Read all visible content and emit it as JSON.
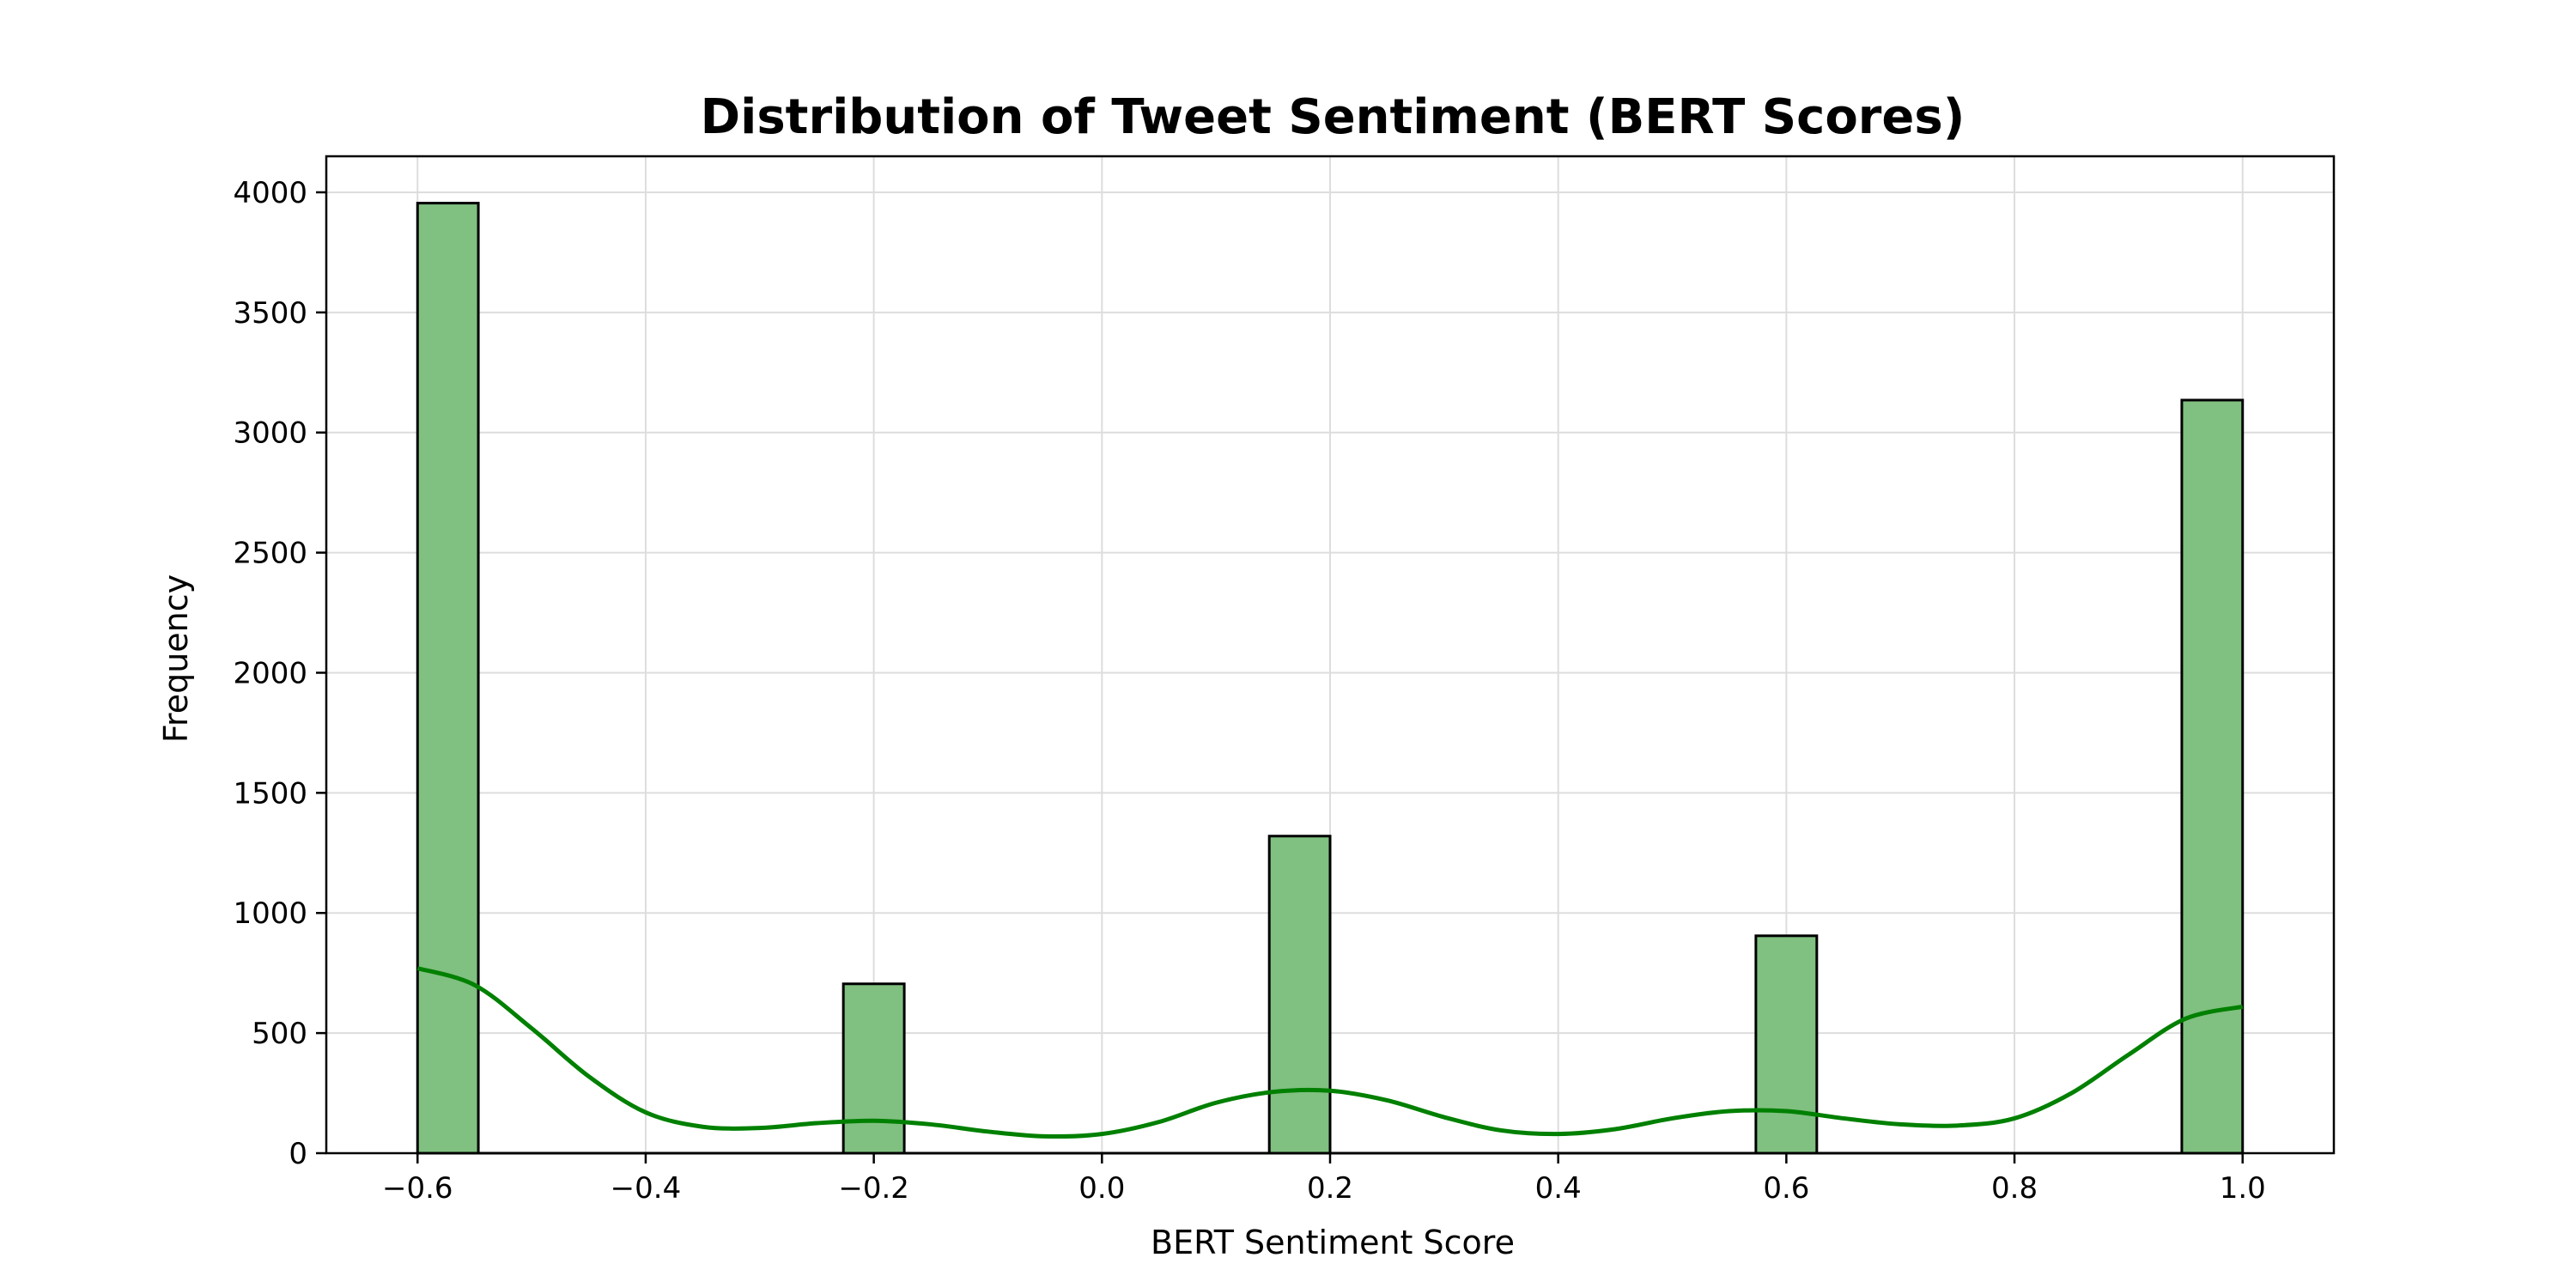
{
  "chart_data": {
    "type": "bar",
    "title": "Distribution of Tweet Sentiment (BERT Scores)",
    "xlabel": "BERT Sentiment Score",
    "ylabel": "Frequency",
    "xlim": [
      -0.68,
      1.08
    ],
    "ylim": [
      0,
      4150
    ],
    "x_ticks": [
      -0.6,
      -0.4,
      -0.2,
      0.0,
      0.2,
      0.4,
      0.6,
      0.8,
      1.0
    ],
    "x_tick_labels": [
      "−0.6",
      "−0.4",
      "−0.2",
      "0.0",
      "0.2",
      "0.4",
      "0.6",
      "0.8",
      "1.0"
    ],
    "y_ticks": [
      0,
      500,
      1000,
      1500,
      2000,
      2500,
      3000,
      3500,
      4000
    ],
    "y_tick_labels": [
      "0",
      "500",
      "1000",
      "1500",
      "2000",
      "2500",
      "3000",
      "3500",
      "4000"
    ],
    "grid": true,
    "bar_color": "#80c080",
    "edge_color": "#000000",
    "kde_color": "#008000",
    "bars": [
      {
        "x0": -0.6,
        "x1": -0.5467,
        "value": 3955
      },
      {
        "x0": -0.2267,
        "x1": -0.1733,
        "value": 705
      },
      {
        "x0": 0.1467,
        "x1": 0.2,
        "value": 1320
      },
      {
        "x0": 0.5733,
        "x1": 0.6267,
        "value": 905
      },
      {
        "x0": 0.9467,
        "x1": 1.0,
        "value": 3135
      }
    ],
    "kde": {
      "x": [
        -0.6,
        -0.55,
        -0.5,
        -0.45,
        -0.4,
        -0.35,
        -0.3,
        -0.25,
        -0.2,
        -0.15,
        -0.1,
        -0.05,
        0.0,
        0.05,
        0.1,
        0.15,
        0.2,
        0.25,
        0.3,
        0.35,
        0.4,
        0.45,
        0.5,
        0.55,
        0.6,
        0.65,
        0.7,
        0.75,
        0.8,
        0.85,
        0.9,
        0.95,
        1.0
      ],
      "y": [
        770,
        700,
        520,
        320,
        170,
        110,
        105,
        125,
        135,
        120,
        90,
        70,
        80,
        130,
        210,
        255,
        260,
        220,
        150,
        95,
        80,
        100,
        145,
        175,
        175,
        145,
        120,
        115,
        145,
        250,
        410,
        560,
        610
      ]
    }
  }
}
